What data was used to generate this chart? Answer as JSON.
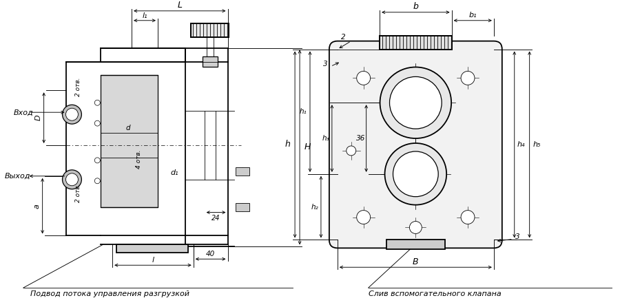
{
  "bg_color": "#ffffff",
  "caption_left": "Подвод потока управления разгрузкой",
  "caption_right": "Слив вспомогательного клапана",
  "labels_left": {
    "L": "L",
    "l1": "l₁",
    "l": "l",
    "H": "H",
    "D": "D",
    "d": "d",
    "d1": "d₁",
    "a": "a",
    "n24": "24",
    "n40": "40",
    "atv2_top": "2 отв.",
    "atv2_bot": "2 отв.",
    "atv4": "4 отв.",
    "vhod": "Вход",
    "vyhod": "Выход"
  },
  "labels_right": {
    "b": "b",
    "b1": "b₁",
    "h": "h",
    "h1": "h₁",
    "h2": "h₂",
    "h3": "h₃",
    "h4": "h₄",
    "h5": "h₅",
    "B": "B",
    "n2": "2",
    "n3t": "3",
    "n3b": "3",
    "n36": "36"
  },
  "lw_thick": 1.3,
  "lw_med": 0.9,
  "lw_thin": 0.6,
  "lw_dim": 0.65
}
